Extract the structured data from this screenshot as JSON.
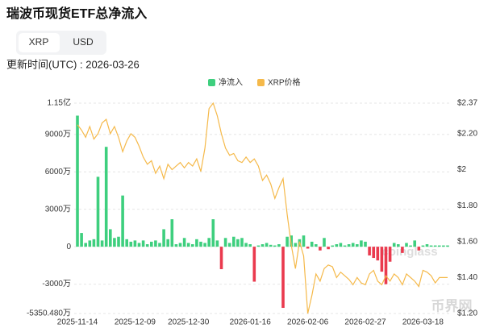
{
  "chart_data": {
    "type": "bar-line",
    "title": "瑞波币现货ETF总净流入",
    "tabs": [
      "XRP",
      "USD"
    ],
    "active_tab": 0,
    "subtitle": "更新时间(UTC) : 2026-03-26",
    "watermarks": [
      "coinglass",
      "币界网"
    ],
    "grid": true,
    "categories": [
      "2025-11-14",
      null,
      null,
      null,
      null,
      null,
      null,
      null,
      null,
      null,
      null,
      null,
      null,
      null,
      "2025-12-09",
      null,
      null,
      null,
      null,
      null,
      null,
      null,
      null,
      null,
      null,
      null,
      null,
      "2025-12-30",
      null,
      null,
      null,
      null,
      null,
      null,
      null,
      null,
      null,
      null,
      null,
      null,
      null,
      null,
      "2026-01-16",
      null,
      null,
      null,
      null,
      null,
      null,
      null,
      null,
      null,
      null,
      null,
      null,
      null,
      "2026-02-06",
      null,
      null,
      null,
      null,
      null,
      null,
      null,
      null,
      null,
      null,
      null,
      null,
      null,
      "2026-02-27",
      null,
      null,
      null,
      null,
      null,
      null,
      null,
      null,
      null,
      null,
      null,
      null,
      null,
      "2026-03-18",
      null,
      null,
      null,
      null,
      null,
      null
    ],
    "ylim": [
      -5350.48,
      11500
    ],
    "yticks": [
      {
        "value": 11500,
        "label": "1.15亿"
      },
      {
        "value": 9000,
        "label": "9000万"
      },
      {
        "value": 6000,
        "label": "6000万"
      },
      {
        "value": 3000,
        "label": "3000万"
      },
      0,
      {
        "value": -3000,
        "label": "-3000万"
      },
      {
        "value": -5350.48,
        "label": "-5350.480万"
      }
    ],
    "y2lim": [
      1.2,
      2.37
    ],
    "y2ticks": [
      {
        "value": 2.37,
        "label": "$2.37"
      },
      {
        "value": 2.2,
        "label": "$2.20"
      },
      {
        "value": 2,
        "label": "$2"
      },
      {
        "value": 1.8,
        "label": "$1.80"
      },
      {
        "value": 1.6,
        "label": "$1.60"
      },
      {
        "value": 1.4,
        "label": "$1.40"
      },
      {
        "value": 1.2,
        "label": "$1.20"
      }
    ],
    "series": [
      {
        "name": "净流入",
        "type": "bar",
        "color": "#3ecf7e",
        "negative_color": "#ea3a4e",
        "values": [
          10500,
          1100,
          300,
          500,
          600,
          5600,
          500,
          8000,
          1400,
          700,
          800,
          4100,
          600,
          400,
          500,
          300,
          500,
          200,
          400,
          500,
          300,
          1400,
          600,
          2200,
          200,
          300,
          700,
          300,
          200,
          600,
          400,
          300,
          700,
          2200,
          500,
          -1800,
          700,
          300,
          800,
          600,
          700,
          300,
          200,
          -2800,
          100,
          200,
          300,
          150,
          100,
          200,
          -4900,
          800,
          900,
          300,
          600,
          900,
          -150,
          400,
          200,
          -300,
          700,
          -200,
          100,
          200,
          300,
          100,
          200,
          300,
          200,
          500,
          400,
          -700,
          -900,
          -1100,
          -2000,
          -3000,
          -1200,
          300,
          200,
          -500,
          300,
          100,
          500,
          -300,
          100,
          200,
          100,
          100,
          100,
          100,
          100
        ]
      },
      {
        "name": "XRP价格",
        "type": "line",
        "axis": "y2",
        "color": "#f5b94a",
        "values": [
          2.25,
          2.22,
          2.18,
          2.24,
          2.17,
          2.2,
          2.26,
          2.28,
          2.2,
          2.24,
          2.18,
          2.1,
          2.16,
          2.2,
          2.18,
          2.13,
          2.07,
          2.03,
          2.05,
          1.98,
          2.02,
          1.95,
          2.03,
          2.0,
          2.02,
          2.04,
          2.01,
          2.04,
          2.02,
          2.06,
          1.99,
          2.12,
          2.34,
          2.37,
          2.3,
          2.2,
          2.12,
          2.08,
          2.09,
          2.05,
          2.04,
          2.07,
          2.04,
          2.06,
          2.02,
          1.94,
          1.97,
          1.92,
          1.84,
          1.9,
          1.95,
          1.75,
          1.58,
          1.45,
          1.6,
          1.52,
          1.2,
          1.3,
          1.42,
          1.38,
          1.45,
          1.47,
          1.46,
          1.4,
          1.43,
          1.41,
          1.39,
          1.36,
          1.4,
          1.37,
          1.36,
          1.42,
          1.44,
          1.38,
          1.36,
          1.41,
          1.38,
          1.42,
          1.4,
          1.36,
          1.42,
          1.4,
          1.38,
          1.35,
          1.44,
          1.43,
          1.41,
          1.37,
          1.4,
          1.4,
          1.4
        ]
      }
    ]
  }
}
